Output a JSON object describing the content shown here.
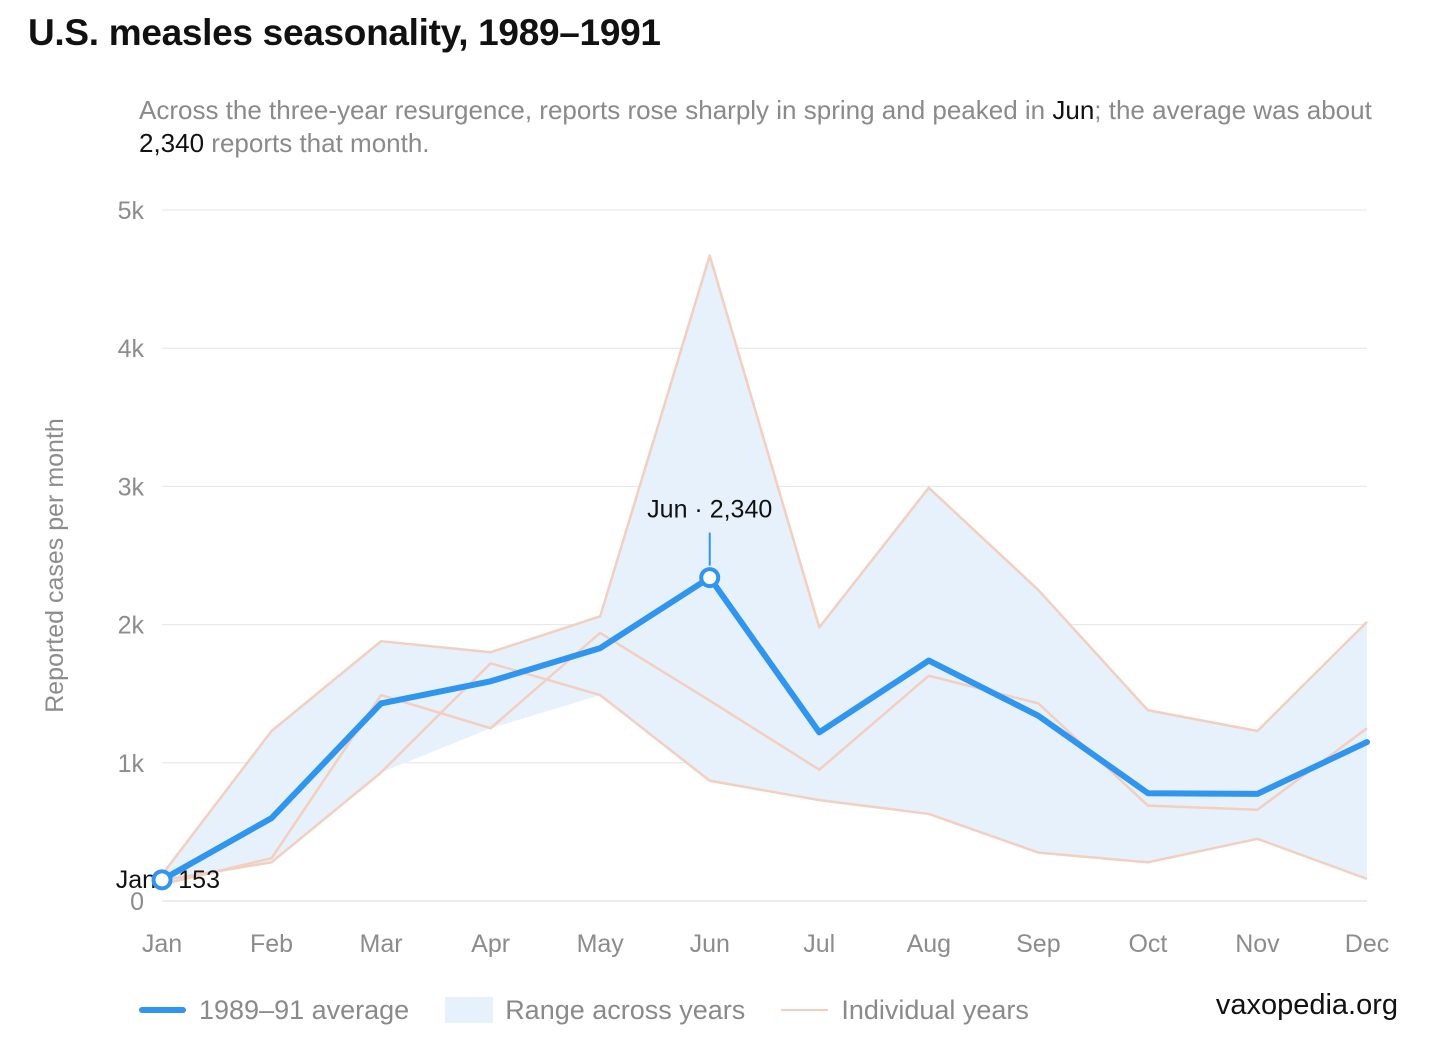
{
  "title": "U.S. measles seasonality, 1989–1991",
  "subtitle": {
    "part1": "Across the three-year resurgence, reports rose sharply in spring and peaked in ",
    "peak_month": "Jun",
    "part2": "; the average was about ",
    "peak_value": "2,340",
    "part3": " reports that month."
  },
  "legend": {
    "average": "1989–91 average",
    "range": "Range across years",
    "individual": "Individual years"
  },
  "source": "vaxopedia.org",
  "colors": {
    "average_line": "#2f95ee",
    "range_fill": "#e6f1fc",
    "individual_lines": "#f3cfbf",
    "grid": "#e6e6e6"
  },
  "chart_data": {
    "type": "line",
    "categories": [
      "Jan",
      "Feb",
      "Mar",
      "Apr",
      "May",
      "Jun",
      "Jul",
      "Aug",
      "Sep",
      "Oct",
      "Nov",
      "Dec"
    ],
    "ylabel": "Reported cases per month",
    "ylim": [
      0,
      5000
    ],
    "yticks": [
      0,
      1000,
      2000,
      3000,
      4000,
      5000
    ],
    "ytick_labels": [
      "0",
      "1k",
      "2k",
      "3k",
      "4k",
      "5k"
    ],
    "grid": true,
    "legend_position": "bottom",
    "series": [
      {
        "name": "1989–91 average",
        "role": "average",
        "values": [
          153,
          600,
          1430,
          1590,
          1830,
          2340,
          1220,
          1740,
          1340,
          780,
          775,
          1150
        ]
      },
      {
        "role": "individual",
        "values": [
          190,
          1230,
          1880,
          1800,
          2060,
          4670,
          1980,
          2990,
          2250,
          1380,
          1230,
          2020
        ]
      },
      {
        "role": "individual",
        "values": [
          120,
          310,
          1490,
          1250,
          1940,
          1450,
          950,
          1630,
          1430,
          690,
          660,
          1250
        ]
      },
      {
        "role": "individual",
        "values": [
          150,
          280,
          930,
          1720,
          1490,
          870,
          730,
          630,
          350,
          280,
          450,
          160
        ]
      }
    ],
    "range": {
      "name": "Range across years",
      "upper": [
        190,
        1230,
        1880,
        1800,
        2060,
        4670,
        1980,
        2990,
        2250,
        1380,
        1230,
        2020
      ],
      "lower": [
        120,
        280,
        930,
        1250,
        1490,
        870,
        730,
        630,
        350,
        280,
        450,
        160
      ]
    },
    "annotations": [
      {
        "label": "Jan · 153",
        "category": "Jan",
        "value": 153
      },
      {
        "label": "Jun · 2,340",
        "category": "Jun",
        "value": 2340
      }
    ]
  }
}
